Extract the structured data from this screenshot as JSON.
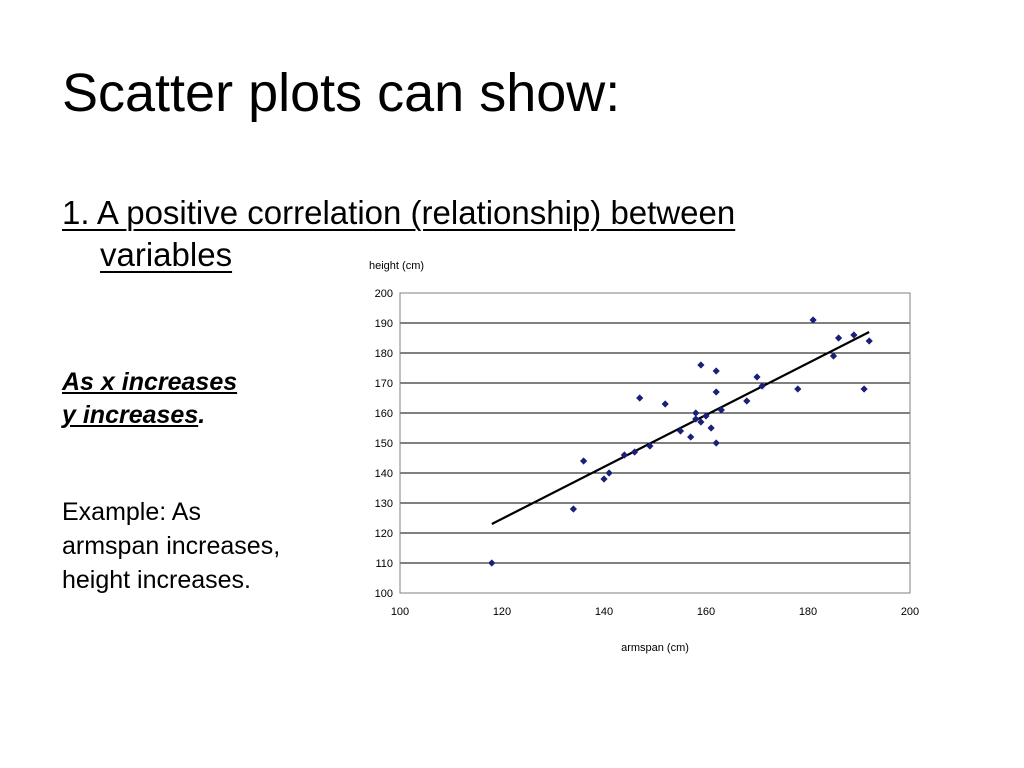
{
  "slide": {
    "title": "Scatter plots can show:",
    "point1_line1": "1. A positive correlation (relationship) between",
    "point1_line2": "variables",
    "emph_line1": "As x increases",
    "emph_line2_u": "y increases",
    "emph_line2_tail": ".",
    "example_line1": "Example: As",
    "example_line2": "armspan increases,",
    "example_line3": "height increases."
  },
  "chart_data": {
    "type": "scatter",
    "xlabel": "armspan (cm)",
    "ylabel": "height (cm)",
    "xlim": [
      100,
      200
    ],
    "ylim": [
      100,
      200
    ],
    "xticks": [
      100,
      120,
      140,
      160,
      180,
      200
    ],
    "yticks": [
      100,
      110,
      120,
      130,
      140,
      150,
      160,
      170,
      180,
      190,
      200
    ],
    "grid": "horizontal",
    "marker_color": "#1a1f7a",
    "points": [
      {
        "x": 118,
        "y": 110
      },
      {
        "x": 134,
        "y": 128
      },
      {
        "x": 136,
        "y": 144
      },
      {
        "x": 140,
        "y": 138
      },
      {
        "x": 141,
        "y": 140
      },
      {
        "x": 144,
        "y": 146
      },
      {
        "x": 146,
        "y": 147
      },
      {
        "x": 147,
        "y": 165
      },
      {
        "x": 149,
        "y": 149
      },
      {
        "x": 152,
        "y": 163
      },
      {
        "x": 155,
        "y": 154
      },
      {
        "x": 157,
        "y": 152
      },
      {
        "x": 158,
        "y": 160
      },
      {
        "x": 158,
        "y": 158
      },
      {
        "x": 159,
        "y": 176
      },
      {
        "x": 159,
        "y": 157
      },
      {
        "x": 160,
        "y": 159
      },
      {
        "x": 161,
        "y": 155
      },
      {
        "x": 162,
        "y": 150
      },
      {
        "x": 162,
        "y": 167
      },
      {
        "x": 162,
        "y": 174
      },
      {
        "x": 163,
        "y": 161
      },
      {
        "x": 168,
        "y": 164
      },
      {
        "x": 170,
        "y": 172
      },
      {
        "x": 171,
        "y": 169
      },
      {
        "x": 178,
        "y": 168
      },
      {
        "x": 181,
        "y": 191
      },
      {
        "x": 185,
        "y": 179
      },
      {
        "x": 186,
        "y": 185
      },
      {
        "x": 189,
        "y": 186
      },
      {
        "x": 191,
        "y": 168
      },
      {
        "x": 192,
        "y": 184
      }
    ],
    "trendline": {
      "x": [
        118,
        192
      ],
      "y": [
        123,
        187
      ]
    }
  }
}
